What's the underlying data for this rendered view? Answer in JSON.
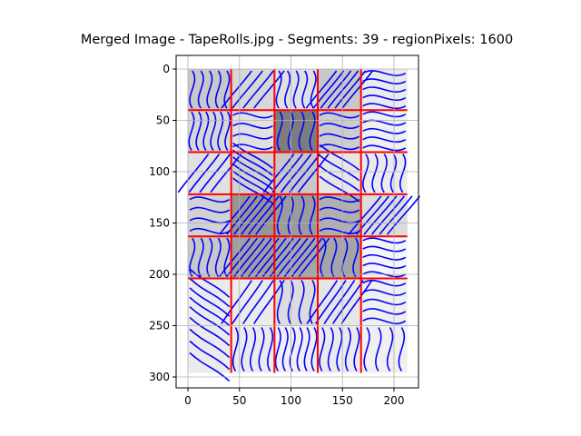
{
  "chart_data": {
    "type": "heatmap",
    "title": "Merged Image - TapeRolls.jpg - Segments: 39 - regionPixels: 1600",
    "xlabel": "",
    "ylabel": "",
    "xlim": [
      0,
      215
    ],
    "ylim": [
      300,
      0
    ],
    "x_ticks": [
      0,
      50,
      100,
      150,
      200
    ],
    "y_ticks": [
      0,
      50,
      100,
      150,
      200,
      250,
      300
    ],
    "x_tick_labels": [
      "0",
      "50",
      "100",
      "150",
      "200"
    ],
    "y_tick_labels": [
      "0",
      "50",
      "100",
      "150",
      "200",
      "250",
      "300"
    ],
    "grid": true,
    "columns": [
      0,
      42,
      84,
      126,
      168,
      213
    ],
    "rows": [
      0,
      40,
      81,
      122,
      163,
      204,
      250,
      296
    ],
    "cell_gray": [
      [
        200,
        215,
        225,
        200,
        235
      ],
      [
        215,
        225,
        125,
        205,
        240
      ],
      [
        225,
        210,
        200,
        230,
        235
      ],
      [
        210,
        150,
        155,
        175,
        220
      ],
      [
        200,
        160,
        165,
        165,
        245
      ],
      [
        235,
        235,
        220,
        230,
        240
      ],
      [
        235,
        235,
        240,
        235,
        240
      ]
    ],
    "red_vertical_lines": [
      42,
      84,
      126,
      168
    ],
    "red_horizontal_lines": [
      40,
      81,
      122,
      163,
      204
    ],
    "colors": {
      "segment_boundary": "#ff0000",
      "contour": "#0000ff",
      "grid": "#b0b0b0"
    }
  }
}
